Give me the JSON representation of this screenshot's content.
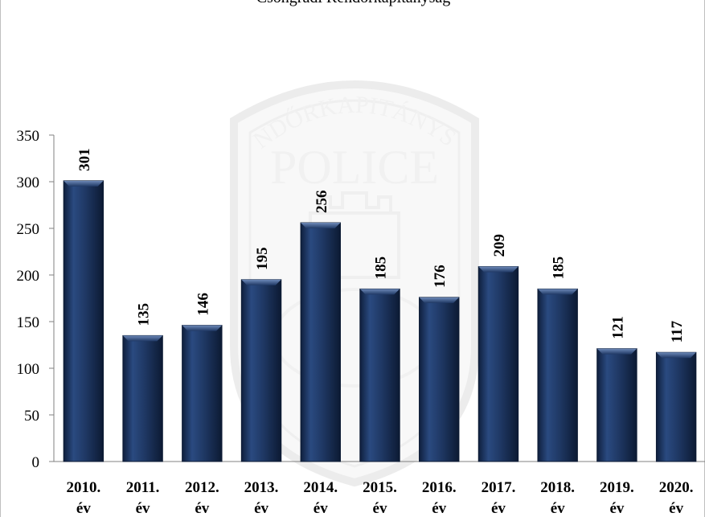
{
  "chart_data": {
    "type": "bar",
    "title": "Csongrádi Rendőrkapitányság",
    "xlabel": "",
    "ylabel": "",
    "ylim": [
      0,
      350
    ],
    "yticks": [
      0,
      50,
      100,
      150,
      200,
      250,
      300,
      350
    ],
    "grid": false,
    "legend": "none",
    "categories": [
      [
        "2010.",
        "év"
      ],
      [
        "2011.",
        "év"
      ],
      [
        "2012.",
        "év"
      ],
      [
        "2013.",
        "év"
      ],
      [
        "2014.",
        "év"
      ],
      [
        "2015.",
        "év"
      ],
      [
        "2016.",
        "év"
      ],
      [
        "2017.",
        "év"
      ],
      [
        "2018.",
        "év"
      ],
      [
        "2019.",
        "év"
      ],
      [
        "2020.",
        "év"
      ]
    ],
    "values": [
      301,
      135,
      146,
      195,
      256,
      185,
      176,
      209,
      185,
      121,
      117
    ],
    "bar_color": "#1f3864",
    "watermark": {
      "top_text": "RENDŐRKAPITÁNYSÁG",
      "main_text": "POLICE"
    }
  }
}
